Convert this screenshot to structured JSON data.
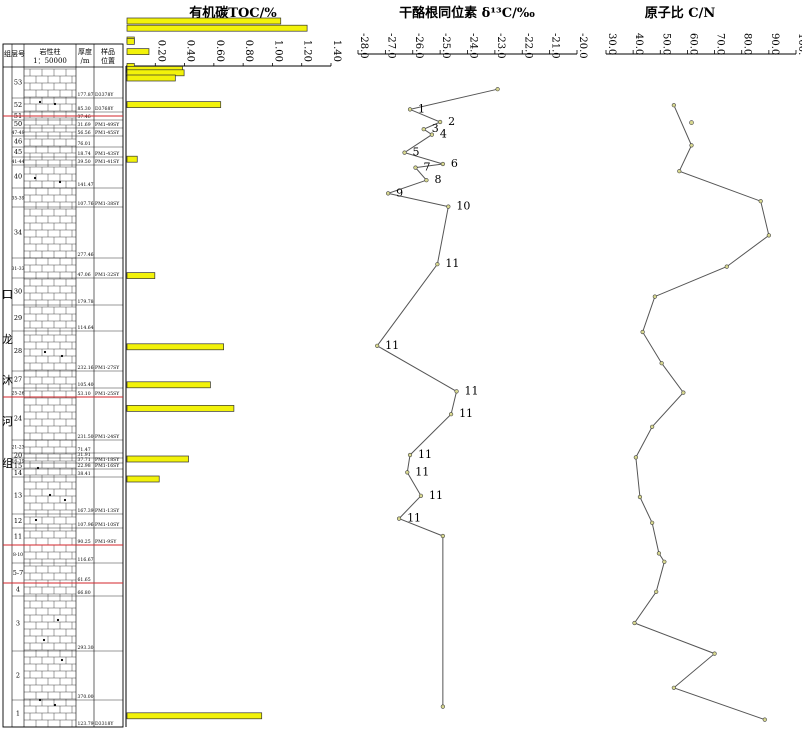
{
  "column_headers": {
    "formation": "组",
    "layer": "层号",
    "lithology_line1": "岩性柱",
    "lithology_line2": "1：50000",
    "thickness_line1": "厚度",
    "thickness_line2": "/m",
    "sample_line1": "样品",
    "sample_line2": "位置"
  },
  "formation_name_chars": [
    "口",
    "龙",
    "沐",
    "河",
    "组"
  ],
  "layers": [
    {
      "n": "53",
      "thk": "177.87",
      "sample": "D3378Y"
    },
    {
      "n": "52",
      "thk": "85.30",
      "sample": "D3768Y"
    },
    {
      "n": "51",
      "thk": "37.46",
      "sample": ""
    },
    {
      "n": "50",
      "thk": "31.69",
      "sample": "PM1-49SY"
    },
    {
      "n": "47-49",
      "thk": "56.56",
      "sample": "PM1-45SY"
    },
    {
      "n": "46",
      "thk": "76.01",
      "sample": ""
    },
    {
      "n": "45",
      "thk": "18.74",
      "sample": "PM1-43SY"
    },
    {
      "n": "41-44",
      "thk": "39.50",
      "sample": "PM1-41SY"
    },
    {
      "n": "40",
      "thk": "141.47",
      "sample": ""
    },
    {
      "n": "35-39",
      "thk": "107.76",
      "sample": "PM1-38SY"
    },
    {
      "n": "34",
      "thk": "277.46",
      "sample": ""
    },
    {
      "n": "31-33",
      "thk": "47.06",
      "sample": "PM1-32SY"
    },
    {
      "n": "30",
      "thk": "179.78",
      "sample": ""
    },
    {
      "n": "29",
      "thk": "114.64",
      "sample": ""
    },
    {
      "n": "28",
      "thk": "232.16",
      "sample": "PM1-27SY"
    },
    {
      "n": "27",
      "thk": "105.40",
      "sample": ""
    },
    {
      "n": "25-26",
      "thk": "53.10",
      "sample": "PM1-25SY"
    },
    {
      "n": "24",
      "thk": "231.50",
      "sample": "PM1-24SY"
    },
    {
      "n": "21-23",
      "thk": "71.47",
      "sample": ""
    },
    {
      "n": "20",
      "thk": "31.91",
      "sample": ""
    },
    {
      "n": "16-19",
      "thk": "37.71",
      "sample": "PM1-18SY"
    },
    {
      "n": "15",
      "thk": "22.98",
      "sample": "PM1-16SY"
    },
    {
      "n": "14",
      "thk": "38.41",
      "sample": ""
    },
    {
      "n": "13",
      "thk": "167.39",
      "sample": "PM1-13SY"
    },
    {
      "n": "12",
      "thk": "107.96",
      "sample": "PM1-10SY"
    },
    {
      "n": "11",
      "thk": "90.25",
      "sample": "PM1-9SY"
    },
    {
      "n": "8-10",
      "thk": "116.67",
      "sample": ""
    },
    {
      "n": "5-7",
      "thk": "61.65",
      "sample": ""
    },
    {
      "n": "4",
      "thk": "66.80",
      "sample": ""
    },
    {
      "n": "3",
      "thk": "293.30",
      "sample": ""
    },
    {
      "n": "2",
      "thk": "370.00",
      "sample": ""
    },
    {
      "n": "1",
      "thk": "123.79",
      "sample": "D3318Y"
    }
  ],
  "chart_data": [
    {
      "type": "bar",
      "title": "有机碳TOC/%",
      "xlim": [
        0,
        1.4
      ],
      "ticks": [
        0.2,
        0.4,
        0.6,
        0.8,
        1.0,
        1.2,
        1.4
      ],
      "tick_labels": [
        "0.20",
        "0.40",
        "0.60",
        "0.80",
        "1.00",
        "1.20",
        "1.40"
      ],
      "orientation": "horizontal",
      "bar_color": "#f2f20a",
      "stratigraphic_height": [
        704.0,
        696.8,
        685.0,
        683.6,
        673.4,
        658.6,
        655.6,
        652.2,
        647.0,
        620.4,
        565.8,
        449.4,
        378.2,
        340.2,
        316.6,
        266.0,
        246.0,
        9.2
      ],
      "values": [
        1.05,
        1.23,
        0.05,
        0.05,
        0.15,
        0.05,
        0.38,
        0.39,
        0.33,
        0.64,
        0.07,
        0.19,
        0.66,
        0.57,
        0.73,
        0.42,
        0.22,
        0.92
      ]
    },
    {
      "type": "line",
      "title": "干酪根同位素 δ¹³C/‰",
      "xlim": [
        -28.0,
        -20.0
      ],
      "ticks": [
        -28,
        -27,
        -26,
        -25,
        -24,
        -23,
        -22,
        -21,
        -20
      ],
      "tick_labels": [
        "-28.0",
        "-27.0",
        "-26.0",
        "-25.0",
        "-24.0",
        "-23.0",
        "-22.0",
        "-21.0",
        "-20.0"
      ],
      "y_name": "stratigraphic height",
      "x": [
        -22.9,
        -26.1,
        -25.0,
        -25.6,
        -25.3,
        -26.3,
        -24.9,
        -25.9,
        -25.5,
        -26.9,
        -24.7,
        -25.1,
        -27.3,
        -24.4,
        -24.6,
        -26.1,
        -26.2,
        -25.7,
        -26.5,
        -24.9,
        -24.9
      ],
      "y": [
        635.8,
        615.6,
        603.0,
        595.8,
        590.4,
        572.4,
        561.0,
        557.4,
        544.8,
        531.6,
        518.4,
        460.8,
        379.2,
        333.6,
        310.8,
        270.0,
        252.6,
        229.2,
        206.4,
        189.0,
        18.4
      ],
      "labels": [
        "",
        "1",
        "2",
        "3",
        "4",
        "5",
        "6",
        "7",
        "8",
        "9",
        "10",
        "11",
        "11",
        "11",
        "11",
        "11",
        "11",
        "11",
        "11",
        "",
        ""
      ]
    },
    {
      "type": "line",
      "title": "原子比 C/N",
      "xlim": [
        30.0,
        100.0
      ],
      "ticks": [
        30,
        40,
        50,
        60,
        70,
        80,
        90,
        100
      ],
      "tick_labels": [
        "30.0",
        "40.0",
        "50.0",
        "60.0",
        "70.0",
        "80.0",
        "90.0",
        "100."
      ],
      "y_name": "stratigraphic height",
      "x": [
        55.0,
        61.5,
        57.0,
        87.0,
        90.0,
        74.5,
        48.0,
        43.5,
        50.5,
        58.5,
        47.0,
        41.0,
        42.5,
        47.0,
        49.5,
        51.5,
        48.5,
        40.5,
        70.0,
        55.0,
        88.5
      ],
      "y": [
        619.8,
        579.6,
        553.8,
        523.8,
        489.6,
        458.4,
        428.4,
        393.0,
        361.8,
        332.4,
        298.2,
        267.6,
        228.0,
        202.2,
        171.6,
        163.2,
        133.2,
        102.0,
        71.4,
        37.2,
        5.4
      ],
      "extra_point": {
        "x": 61.5,
        "y": 602.4
      }
    }
  ]
}
